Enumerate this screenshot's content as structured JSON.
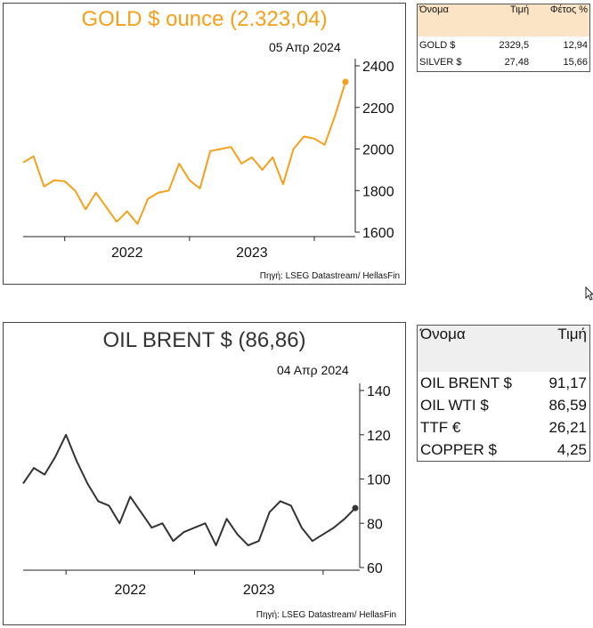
{
  "chart_data": [
    {
      "type": "line",
      "title": "GOLD $ ounce (2.323,04)",
      "subtitle": "05 Απρ 2024",
      "source": "Πηγή: LSEG Datastream/ HellasFin",
      "color": "#f5a01a",
      "x_ticks": [
        "2022",
        "2023"
      ],
      "y_ticks": [
        "1600",
        "1800",
        "2000",
        "2200",
        "2400"
      ],
      "ylim": [
        1600,
        2400
      ],
      "axis_position": "right",
      "grid": false,
      "x": [
        "2021-09",
        "2021-10",
        "2021-11",
        "2021-12",
        "2022-01",
        "2022-02",
        "2022-03",
        "2022-04",
        "2022-05",
        "2022-06",
        "2022-07",
        "2022-08",
        "2022-09",
        "2022-10",
        "2022-11",
        "2022-12",
        "2023-01",
        "2023-02",
        "2023-03",
        "2023-04",
        "2023-05",
        "2023-06",
        "2023-07",
        "2023-08",
        "2023-09",
        "2023-10",
        "2023-11",
        "2023-12",
        "2024-01",
        "2024-02",
        "2024-03",
        "2024-04"
      ],
      "values": [
        1935,
        1965,
        1820,
        1850,
        1845,
        1800,
        1710,
        1790,
        1720,
        1650,
        1700,
        1640,
        1760,
        1790,
        1800,
        1930,
        1850,
        1810,
        1990,
        2000,
        2010,
        1930,
        1960,
        1900,
        1960,
        1830,
        2000,
        2060,
        2050,
        2020,
        2160,
        2323
      ],
      "last_point": 2323
    },
    {
      "type": "line",
      "title": "OIL BRENT $ (86,86)",
      "subtitle": "04 Απρ 2024",
      "source": "Πηγή: LSEG Datastream/ HellasFin",
      "color": "#333333",
      "x_ticks": [
        "2022",
        "2023"
      ],
      "y_ticks": [
        "60",
        "80",
        "100",
        "120",
        "140"
      ],
      "ylim": [
        60,
        140
      ],
      "axis_position": "right",
      "grid": false,
      "x": [
        "2021-09",
        "2021-10",
        "2021-11",
        "2021-12",
        "2022-01",
        "2022-02",
        "2022-03",
        "2022-04",
        "2022-05",
        "2022-06",
        "2022-07",
        "2022-08",
        "2022-09",
        "2022-10",
        "2022-11",
        "2022-12",
        "2023-01",
        "2023-02",
        "2023-03",
        "2023-04",
        "2023-05",
        "2023-06",
        "2023-07",
        "2023-08",
        "2023-09",
        "2023-10",
        "2023-11",
        "2023-12",
        "2024-01",
        "2024-02",
        "2024-03",
        "2024-04"
      ],
      "values": [
        98,
        105,
        102,
        110,
        120,
        108,
        98,
        90,
        88,
        80,
        92,
        85,
        78,
        80,
        72,
        76,
        78,
        80,
        70,
        82,
        75,
        70,
        72,
        85,
        90,
        88,
        78,
        72,
        75,
        78,
        82,
        86.86
      ],
      "last_point": 86.86
    }
  ],
  "gold_table": {
    "headers": [
      "Όνομα",
      "Τιμή",
      "Φέτος %"
    ],
    "rows": [
      {
        "name": "GOLD $",
        "price": "2329,5",
        "ytd": "12,94"
      },
      {
        "name": "SILVER $",
        "price": "27,48",
        "ytd": "15,66"
      }
    ]
  },
  "oil_table": {
    "headers": [
      "Όνομα",
      "Τιμή"
    ],
    "rows": [
      {
        "name": "OIL BRENT $",
        "price": "91,17"
      },
      {
        "name": "OIL WTI $",
        "price": "86,59"
      },
      {
        "name": "TTF €",
        "price": "26,21"
      },
      {
        "name": "COPPER $",
        "price": "4,25"
      }
    ]
  }
}
